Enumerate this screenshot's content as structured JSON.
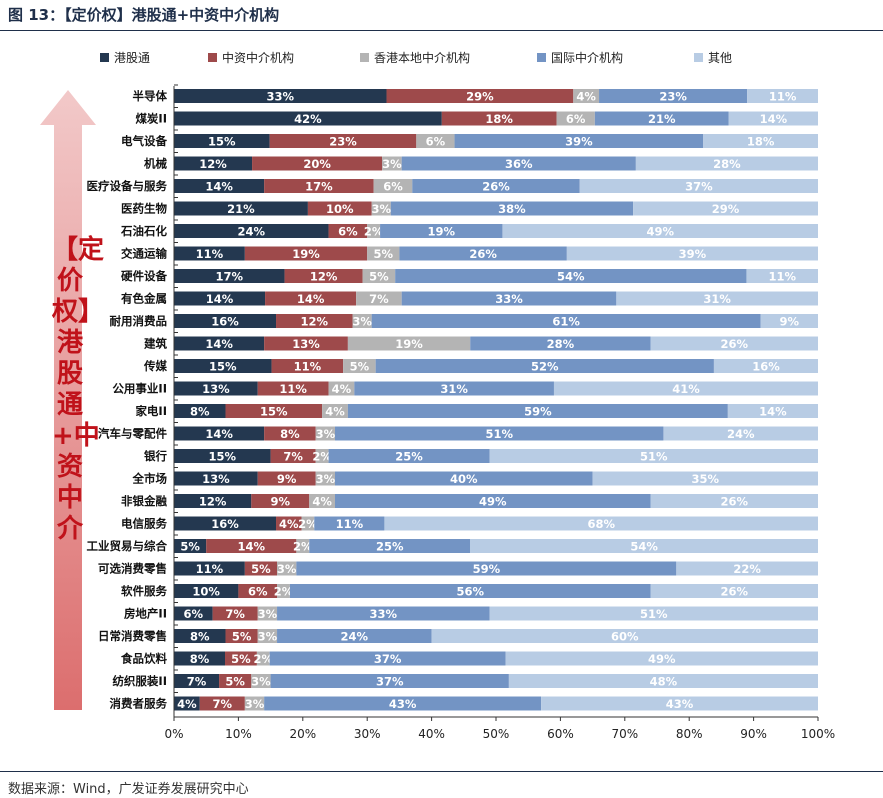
{
  "title": "图 13：【定价权】港股通+中资中介机构",
  "source": "数据来源：Wind，广发证券发展研究中心",
  "side_label": "【定价权】港股通+中资中介",
  "chart_data": {
    "type": "bar",
    "orientation": "horizontal",
    "stacked": true,
    "legend_position": "top",
    "xlim": [
      0,
      100
    ],
    "x_ticks": [
      "0%",
      "10%",
      "20%",
      "30%",
      "40%",
      "50%",
      "60%",
      "70%",
      "80%",
      "90%",
      "100%"
    ],
    "grid": false,
    "categories": [
      "半导体",
      "煤炭II",
      "电气设备",
      "机械",
      "医疗设备与服务",
      "医药生物",
      "石油石化",
      "交通运输",
      "硬件设备",
      "有色金属",
      "耐用消费品",
      "建筑",
      "传媒",
      "公用事业II",
      "家电II",
      "汽车与零配件",
      "银行",
      "全市场",
      "非银金融",
      "电信服务",
      "工业贸易与综合",
      "可选消费零售",
      "软件服务",
      "房地产II",
      "日常消费零售",
      "食品饮料",
      "纺织服装II",
      "消费者服务"
    ],
    "series": [
      {
        "name": "港股通",
        "color": "#243850",
        "values": [
          33,
          42,
          15,
          12,
          14,
          21,
          24,
          11,
          17,
          14,
          16,
          14,
          15,
          13,
          8,
          14,
          15,
          13,
          12,
          16,
          5,
          11,
          10,
          6,
          8,
          8,
          7,
          4
        ]
      },
      {
        "name": "中资中介机构",
        "color": "#9e4a4b",
        "values": [
          29,
          18,
          23,
          20,
          17,
          10,
          6,
          19,
          12,
          14,
          12,
          13,
          11,
          11,
          15,
          8,
          7,
          9,
          9,
          4,
          14,
          5,
          6,
          7,
          5,
          5,
          5,
          7
        ]
      },
      {
        "name": "香港本地中介机构",
        "color": "#b4b4b4",
        "values": [
          4,
          6,
          6,
          3,
          6,
          3,
          2,
          5,
          5,
          7,
          3,
          19,
          5,
          4,
          4,
          3,
          2,
          3,
          4,
          2,
          2,
          3,
          2,
          3,
          3,
          2,
          3,
          3
        ]
      },
      {
        "name": "国际中介机构",
        "color": "#7394c4",
        "values": [
          23,
          21,
          39,
          36,
          26,
          38,
          19,
          26,
          54,
          33,
          61,
          28,
          52,
          31,
          59,
          51,
          25,
          40,
          49,
          11,
          25,
          59,
          56,
          33,
          24,
          37,
          37,
          43
        ]
      },
      {
        "name": "其他",
        "color": "#b8cce4",
        "values": [
          11,
          14,
          18,
          28,
          37,
          29,
          49,
          39,
          11,
          31,
          9,
          26,
          16,
          41,
          14,
          24,
          51,
          35,
          26,
          68,
          54,
          22,
          26,
          51,
          60,
          49,
          48,
          43
        ]
      }
    ]
  }
}
